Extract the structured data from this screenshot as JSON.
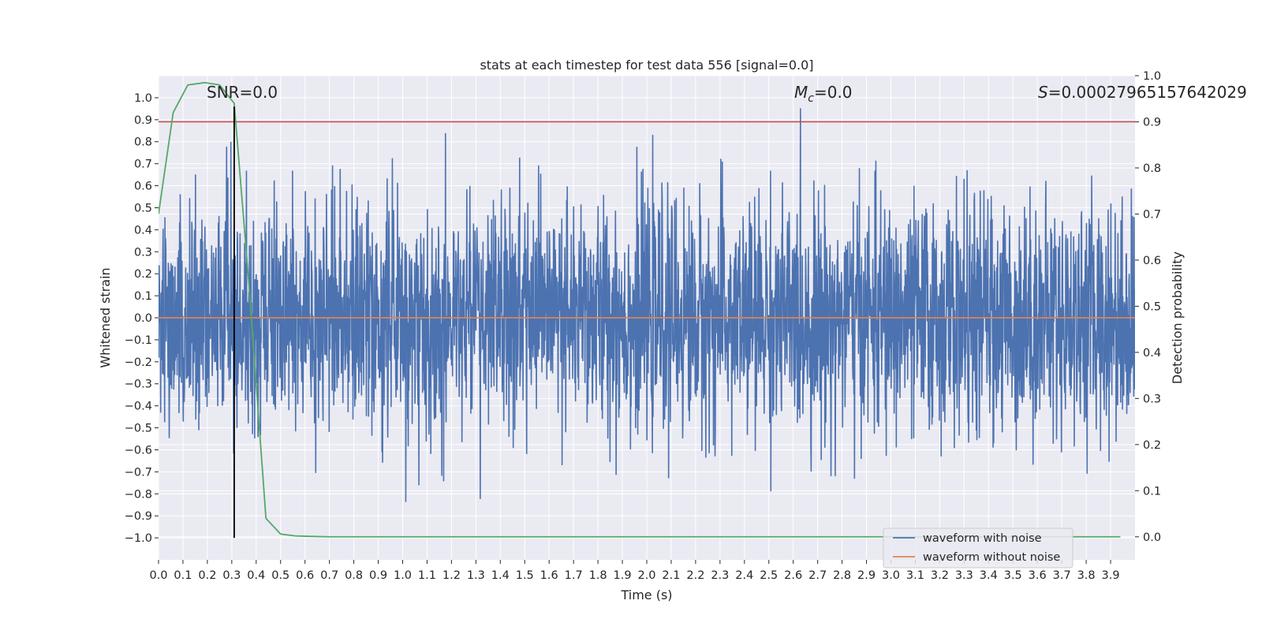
{
  "chart_data": {
    "type": "line",
    "title": "stats at each timestep for test data 556 [signal=0.0]",
    "xlabel": "Time (s)",
    "ylabel": "Whitened strain",
    "y2label": "Detection probability",
    "xlim": [
      0.0,
      4.0
    ],
    "ylim": [
      -1.1,
      1.1
    ],
    "y2lim": [
      -0.05,
      1.0
    ],
    "x_ticks": [
      "0.0",
      "0.1",
      "0.2",
      "0.3",
      "0.4",
      "0.5",
      "0.6",
      "0.7",
      "0.8",
      "0.9",
      "1.0",
      "1.1",
      "1.2",
      "1.3",
      "1.4",
      "1.5",
      "1.6",
      "1.7",
      "1.8",
      "1.9",
      "2.0",
      "2.1",
      "2.2",
      "2.3",
      "2.4",
      "2.5",
      "2.6",
      "2.7",
      "2.8",
      "2.9",
      "3.0",
      "3.1",
      "3.2",
      "3.3",
      "3.4",
      "3.5",
      "3.6",
      "3.7",
      "3.8",
      "3.9"
    ],
    "y_ticks": [
      "1.0",
      "0.9",
      "0.8",
      "0.7",
      "0.6",
      "0.5",
      "0.4",
      "0.3",
      "0.2",
      "0.1",
      "0.0",
      "−0.1",
      "−0.2",
      "−0.3",
      "−0.4",
      "−0.5",
      "−0.6",
      "−0.7",
      "−0.8",
      "−0.9",
      "−1.0"
    ],
    "y2_ticks": [
      "1.0",
      "0.9",
      "0.8",
      "0.7",
      "0.6",
      "0.5",
      "0.4",
      "0.3",
      "0.2",
      "0.1",
      "0.0"
    ],
    "grid": true,
    "legend_position": "lower-right",
    "annotations": {
      "snr": "SNR=0.0",
      "mc": "M",
      "mc_sub": "c",
      "mc_value": "=0.0",
      "s": "S",
      "s_value": "=0.00027965157642029"
    },
    "series": [
      {
        "name": "waveform with noise",
        "color": "#4c72b0",
        "description": "whitened strain noise, amplitude roughly within -1.0 to 0.95 over 0 to 4 s",
        "envelope": {
          "t": [
            0.0,
            4.0
          ],
          "max": 0.95,
          "min": -1.0
        }
      },
      {
        "name": "waveform without noise",
        "color": "#dd8452",
        "x": [
          0.0,
          4.0
        ],
        "y": [
          0.0,
          0.0
        ]
      },
      {
        "name": "detection probability",
        "color": "#55a868",
        "axis": "right",
        "x": [
          0.0,
          0.06,
          0.12,
          0.19,
          0.25,
          0.31,
          0.37,
          0.44,
          0.5,
          0.56,
          0.62,
          0.7,
          1.0,
          2.0,
          3.0,
          3.94
        ],
        "y": [
          0.7,
          0.92,
          0.98,
          0.985,
          0.98,
          0.94,
          0.55,
          0.04,
          0.006,
          0.002,
          0.001,
          0.0,
          0.0,
          0.0,
          0.0,
          0.0
        ]
      }
    ],
    "threshold": {
      "value": 0.9,
      "axis": "right",
      "color": "#c44e52"
    },
    "marker_line": {
      "x": 0.31,
      "y_from": -1.0,
      "y_to": 0.96,
      "color": "#000000"
    }
  }
}
